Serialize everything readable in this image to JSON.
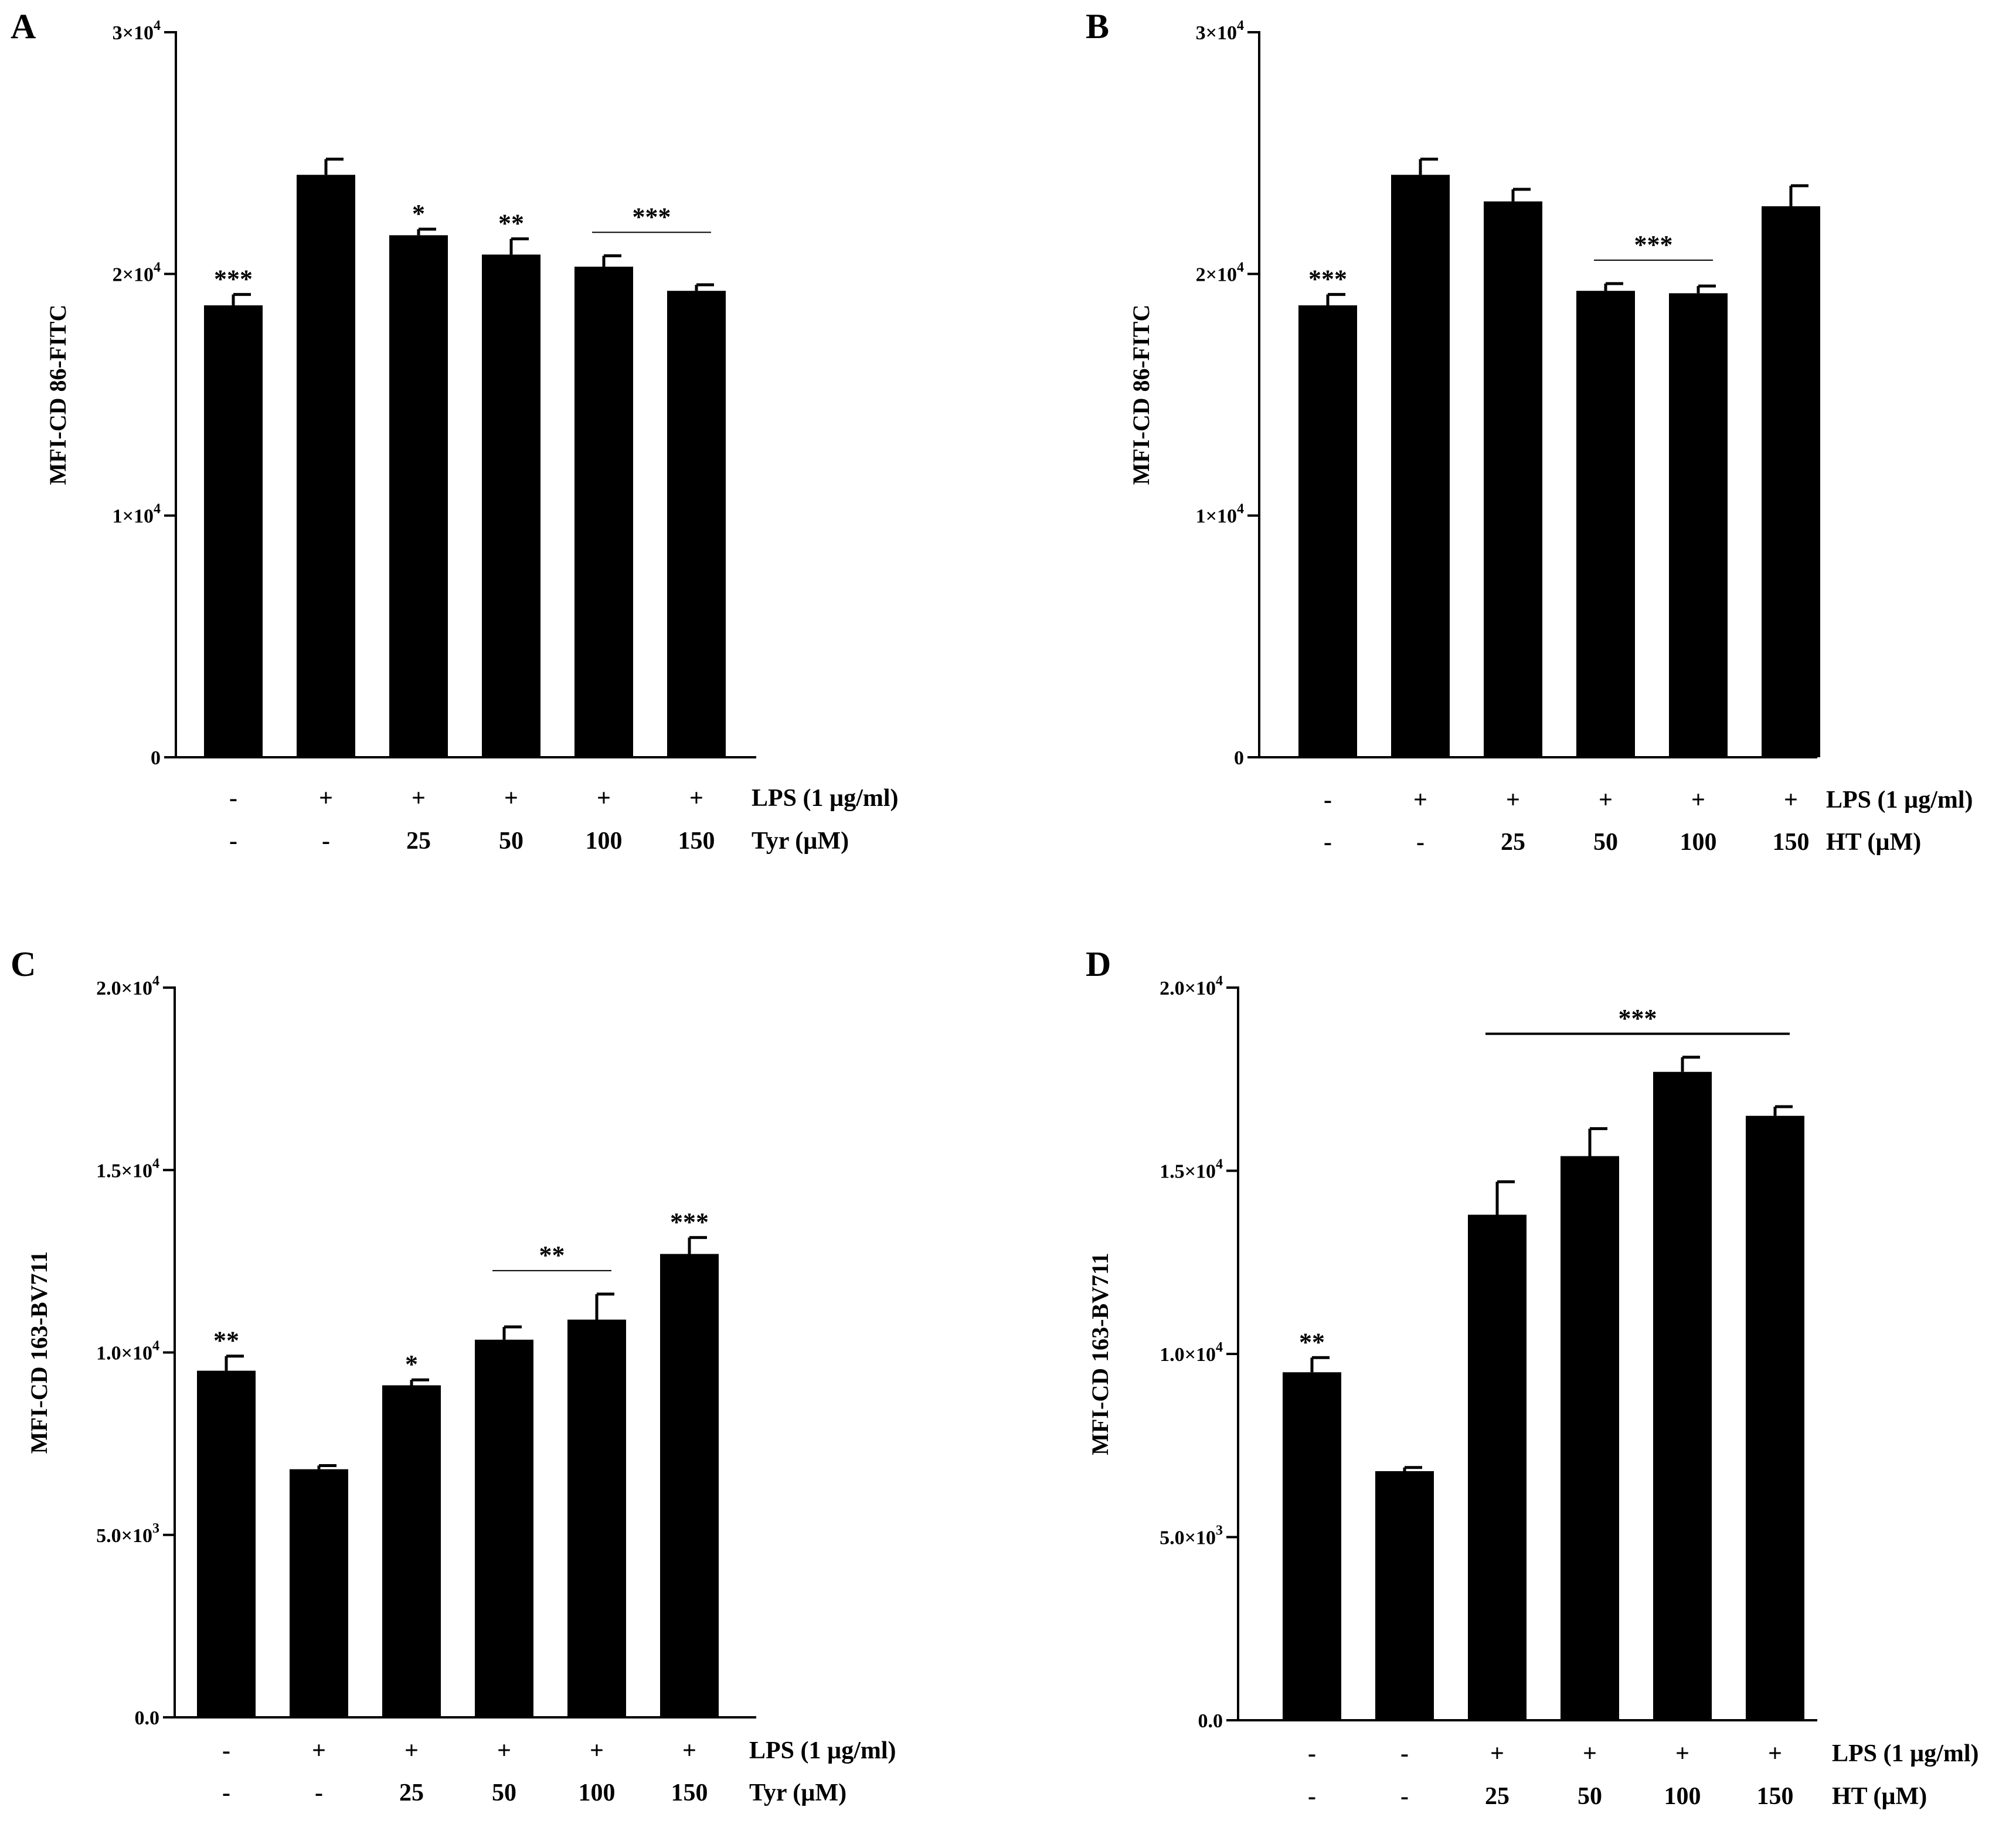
{
  "figure": {
    "panels": [
      "A",
      "B",
      "C",
      "D"
    ]
  },
  "chart_data": [
    {
      "panel": "A",
      "type": "bar",
      "ylabel": "MFI-CD 86-FITC",
      "ylim": [
        0,
        30000
      ],
      "yticks": [
        {
          "value": 0,
          "label": "0"
        },
        {
          "value": 10000,
          "label": "1×10",
          "exp": "4"
        },
        {
          "value": 20000,
          "label": "2×10",
          "exp": "4"
        },
        {
          "value": 30000,
          "label": "3×10",
          "exp": "4"
        }
      ],
      "values": [
        18700,
        24100,
        21600,
        20800,
        20300,
        19300
      ],
      "errors": [
        450,
        650,
        250,
        650,
        450,
        250
      ],
      "rows": [
        {
          "name": "LPS (1 µg/ml)",
          "labels": [
            "-",
            "+",
            "+",
            "+",
            "+",
            "+"
          ]
        },
        {
          "name": "Tyr (µM)",
          "labels": [
            "-",
            "-",
            "25",
            "50",
            "100",
            "150"
          ]
        }
      ],
      "bar_sig": [
        "***",
        "",
        "*",
        "**",
        "",
        ""
      ],
      "brackets": [
        {
          "from": 4,
          "to": 5,
          "text": "***"
        }
      ]
    },
    {
      "panel": "B",
      "type": "bar",
      "ylabel": "MFI-CD 86-FITC",
      "ylim": [
        0,
        30000
      ],
      "yticks": [
        {
          "value": 0,
          "label": "0"
        },
        {
          "value": 10000,
          "label": "1×10",
          "exp": "4"
        },
        {
          "value": 20000,
          "label": "2×10",
          "exp": "4"
        },
        {
          "value": 30000,
          "label": "3×10",
          "exp": "4"
        }
      ],
      "values": [
        18700,
        24100,
        23000,
        19300,
        19200,
        22800
      ],
      "errors": [
        450,
        650,
        500,
        300,
        300,
        850
      ],
      "rows": [
        {
          "name": "LPS (1 µg/ml)",
          "labels": [
            "-",
            "+",
            "+",
            "+",
            "+",
            "+"
          ]
        },
        {
          "name": "HT (µM)",
          "labels": [
            "-",
            "-",
            "25",
            "50",
            "100",
            "150"
          ]
        }
      ],
      "bar_sig": [
        "***",
        "",
        "",
        "",
        "",
        ""
      ],
      "brackets": [
        {
          "from": 3,
          "to": 4,
          "text": "***"
        }
      ]
    },
    {
      "panel": "C",
      "type": "bar",
      "ylabel": "MFI-CD 163-BV711",
      "ylim": [
        0,
        20000
      ],
      "yticks": [
        {
          "value": 0,
          "label": "0.0"
        },
        {
          "value": 5000,
          "label": "5.0×10",
          "exp": "3"
        },
        {
          "value": 10000,
          "label": "1.0×10",
          "exp": "4"
        },
        {
          "value": 15000,
          "label": "1.5×10",
          "exp": "4"
        },
        {
          "value": 20000,
          "label": "2.0×10",
          "exp": "4"
        }
      ],
      "values": [
        9500,
        6800,
        9100,
        10350,
        10900,
        12700
      ],
      "errors": [
        400,
        100,
        150,
        350,
        700,
        450
      ],
      "rows": [
        {
          "name": "LPS (1 µg/ml)",
          "labels": [
            "-",
            "+",
            "+",
            "+",
            "+",
            "+"
          ]
        },
        {
          "name": "Tyr (µM)",
          "labels": [
            "-",
            "-",
            "25",
            "50",
            "100",
            "150"
          ]
        }
      ],
      "bar_sig": [
        "**",
        "",
        "*",
        "",
        "",
        "***"
      ],
      "brackets": [
        {
          "from": 3,
          "to": 4,
          "text": "**"
        }
      ]
    },
    {
      "panel": "D",
      "type": "bar",
      "ylabel": "MFI-CD 163-BV711",
      "ylim": [
        0,
        20000
      ],
      "yticks": [
        {
          "value": 0,
          "label": "0.0"
        },
        {
          "value": 5000,
          "label": "5.0×10",
          "exp": "3"
        },
        {
          "value": 10000,
          "label": "1.0×10",
          "exp": "4"
        },
        {
          "value": 15000,
          "label": "1.5×10",
          "exp": "4"
        },
        {
          "value": 20000,
          "label": "2.0×10",
          "exp": "4"
        }
      ],
      "values": [
        9500,
        6800,
        13800,
        15400,
        17700,
        16500
      ],
      "errors": [
        400,
        100,
        900,
        750,
        400,
        250
      ],
      "rows": [
        {
          "name": "LPS (1 µg/ml)",
          "labels": [
            "-",
            "-",
            "+",
            "+",
            "+",
            "+"
          ]
        },
        {
          "name": "HT (µM)",
          "labels": [
            "-",
            "-",
            "25",
            "50",
            "100",
            "150"
          ]
        }
      ],
      "bar_sig": [
        "**",
        "",
        "",
        "",
        "",
        ""
      ],
      "brackets": [
        {
          "from": 2,
          "to": 5,
          "text": "***"
        }
      ]
    }
  ]
}
